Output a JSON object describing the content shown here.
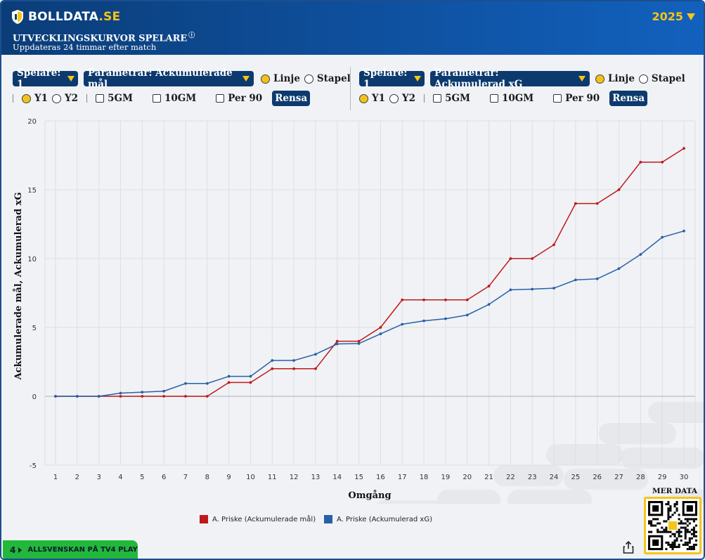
{
  "header": {
    "logo_text": "BOLLDATA",
    "logo_suffix": ".SE",
    "year": "2025",
    "title": "UTVECKLINGSKURVOR SPELARE",
    "info_symbol": "ⓘ",
    "subtitle": "Uppdateras 24 timmar efter match"
  },
  "panels": [
    {
      "player_select": "Spelare: 1",
      "param_select": "Parametrar: Ackumulerade mål",
      "chart_type": {
        "line": "Linje",
        "bar": "Stapel",
        "selected": "line"
      },
      "axis": {
        "y1": "Y1",
        "y2": "Y2",
        "selected": "y1"
      },
      "checks": [
        "5GM",
        "10GM",
        "Per 90"
      ],
      "reset": "Rensa"
    },
    {
      "player_select": "Spelare: 1",
      "param_select": "Parametrar: Ackumulerad xG",
      "chart_type": {
        "line": "Linje",
        "bar": "Stapel",
        "selected": "line"
      },
      "axis": {
        "y1": "Y1",
        "y2": "Y2",
        "selected": "y1"
      },
      "checks": [
        "5GM",
        "10GM",
        "Per 90"
      ],
      "reset": "Rensa"
    }
  ],
  "colors": {
    "header_dark": "#0b3d78",
    "accent_yellow": "#f6c516",
    "series_red": "#c0191b",
    "series_blue": "#2760a8",
    "tv4_green": "#22b83a"
  },
  "chart_data": {
    "type": "line",
    "xlabel": "Omgång",
    "ylabel": "Ackumulerade mål, Ackumulerad xG",
    "x": [
      1,
      2,
      3,
      4,
      5,
      6,
      7,
      8,
      9,
      10,
      11,
      12,
      13,
      14,
      15,
      16,
      17,
      18,
      19,
      20,
      21,
      22,
      23,
      24,
      25,
      26,
      27,
      28,
      29,
      30
    ],
    "ylim": [
      -5,
      20
    ],
    "yticks": [
      -5,
      0,
      5,
      10,
      15,
      20
    ],
    "grid": true,
    "legend_position": "bottom",
    "series": [
      {
        "name": "A. Priske (Ackumulerade mål)",
        "color": "#c0191b",
        "values": [
          0,
          0,
          0,
          0,
          0,
          0,
          0,
          0,
          1,
          1,
          2,
          2,
          2,
          4,
          4,
          5,
          7,
          7,
          7,
          7,
          8,
          10,
          10,
          11,
          14,
          14,
          15,
          17,
          17,
          18
        ]
      },
      {
        "name": "A. Priske (Ackumulerad xG)",
        "color": "#2760a8",
        "values": [
          0,
          0,
          0,
          0.23,
          0.3,
          0.37,
          0.93,
          0.93,
          1.45,
          1.45,
          2.6,
          2.6,
          3.05,
          3.8,
          3.83,
          4.53,
          5.23,
          5.48,
          5.63,
          5.9,
          6.67,
          7.73,
          7.78,
          7.85,
          8.45,
          8.53,
          9.27,
          10.3,
          11.55,
          12.0
        ]
      }
    ]
  },
  "footer": {
    "tv4_number": "4",
    "tv4_text": "ALLSVENSKAN PÅ TV4 PLAY",
    "mer_data": "MER DATA"
  }
}
